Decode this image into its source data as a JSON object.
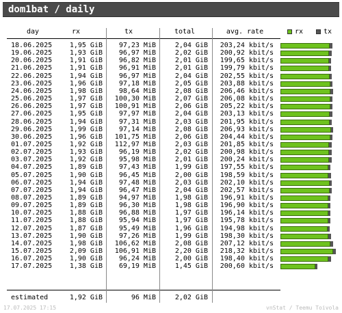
{
  "title": "dom1bat / daily",
  "headers": {
    "day": "day",
    "rx": "rx",
    "tx": "tx",
    "total": "total",
    "rate": "avg. rate"
  },
  "legend": {
    "rx": "rx",
    "tx": "tx",
    "rx_color": "#6ec21e",
    "tx_color": "#555555"
  },
  "rows": [
    {
      "day": "18.06.2025",
      "rx": "1,95 GiB",
      "tx": "97,23 MiB",
      "total": "2,04 GiB",
      "rate": "203,24 kbit/s",
      "rx_gib": 1.95,
      "tx_mib": 97.23
    },
    {
      "day": "19.06.2025",
      "rx": "1,93 GiB",
      "tx": "96,97 MiB",
      "total": "2,02 GiB",
      "rate": "200,92 kbit/s",
      "rx_gib": 1.93,
      "tx_mib": 96.97
    },
    {
      "day": "20.06.2025",
      "rx": "1,91 GiB",
      "tx": "96,82 MiB",
      "total": "2,01 GiB",
      "rate": "199,65 kbit/s",
      "rx_gib": 1.91,
      "tx_mib": 96.82
    },
    {
      "day": "21.06.2025",
      "rx": "1,91 GiB",
      "tx": "96,91 MiB",
      "total": "2,01 GiB",
      "rate": "199,79 kbit/s",
      "rx_gib": 1.91,
      "tx_mib": 96.91
    },
    {
      "day": "22.06.2025",
      "rx": "1,94 GiB",
      "tx": "96,97 MiB",
      "total": "2,04 GiB",
      "rate": "202,55 kbit/s",
      "rx_gib": 1.94,
      "tx_mib": 96.97
    },
    {
      "day": "23.06.2025",
      "rx": "1,96 GiB",
      "tx": "97,18 MiB",
      "total": "2,05 GiB",
      "rate": "203,88 kbit/s",
      "rx_gib": 1.96,
      "tx_mib": 97.18
    },
    {
      "day": "24.06.2025",
      "rx": "1,98 GiB",
      "tx": "98,64 MiB",
      "total": "2,08 GiB",
      "rate": "206,46 kbit/s",
      "rx_gib": 1.98,
      "tx_mib": 98.64
    },
    {
      "day": "25.06.2025",
      "rx": "1,97 GiB",
      "tx": "100,30 MiB",
      "total": "2,07 GiB",
      "rate": "206,08 kbit/s",
      "rx_gib": 1.97,
      "tx_mib": 100.3
    },
    {
      "day": "26.06.2025",
      "rx": "1,97 GiB",
      "tx": "100,91 MiB",
      "total": "2,06 GiB",
      "rate": "205,22 kbit/s",
      "rx_gib": 1.97,
      "tx_mib": 100.91
    },
    {
      "day": "27.06.2025",
      "rx": "1,95 GiB",
      "tx": "97,97 MiB",
      "total": "2,04 GiB",
      "rate": "203,13 kbit/s",
      "rx_gib": 1.95,
      "tx_mib": 97.97
    },
    {
      "day": "28.06.2025",
      "rx": "1,94 GiB",
      "tx": "97,31 MiB",
      "total": "2,03 GiB",
      "rate": "201,95 kbit/s",
      "rx_gib": 1.94,
      "tx_mib": 97.31
    },
    {
      "day": "29.06.2025",
      "rx": "1,99 GiB",
      "tx": "97,14 MiB",
      "total": "2,08 GiB",
      "rate": "206,93 kbit/s",
      "rx_gib": 1.99,
      "tx_mib": 97.14
    },
    {
      "day": "30.06.2025",
      "rx": "1,96 GiB",
      "tx": "101,75 MiB",
      "total": "2,06 GiB",
      "rate": "204,44 kbit/s",
      "rx_gib": 1.96,
      "tx_mib": 101.75
    },
    {
      "day": "01.07.2025",
      "rx": "1,92 GiB",
      "tx": "112,97 MiB",
      "total": "2,03 GiB",
      "rate": "201,85 kbit/s",
      "rx_gib": 1.92,
      "tx_mib": 112.97
    },
    {
      "day": "02.07.2025",
      "rx": "1,93 GiB",
      "tx": "96,19 MiB",
      "total": "2,02 GiB",
      "rate": "200,98 kbit/s",
      "rx_gib": 1.93,
      "tx_mib": 96.19
    },
    {
      "day": "03.07.2025",
      "rx": "1,92 GiB",
      "tx": "95,98 MiB",
      "total": "2,01 GiB",
      "rate": "200,24 kbit/s",
      "rx_gib": 1.92,
      "tx_mib": 95.98
    },
    {
      "day": "04.07.2025",
      "rx": "1,89 GiB",
      "tx": "97,43 MiB",
      "total": "1,99 GiB",
      "rate": "197,55 kbit/s",
      "rx_gib": 1.89,
      "tx_mib": 97.43
    },
    {
      "day": "05.07.2025",
      "rx": "1,90 GiB",
      "tx": "96,45 MiB",
      "total": "2,00 GiB",
      "rate": "198,59 kbit/s",
      "rx_gib": 1.9,
      "tx_mib": 96.45
    },
    {
      "day": "06.07.2025",
      "rx": "1,94 GiB",
      "tx": "97,48 MiB",
      "total": "2,03 GiB",
      "rate": "202,10 kbit/s",
      "rx_gib": 1.94,
      "tx_mib": 97.48
    },
    {
      "day": "07.07.2025",
      "rx": "1,94 GiB",
      "tx": "96,47 MiB",
      "total": "2,04 GiB",
      "rate": "202,57 kbit/s",
      "rx_gib": 1.94,
      "tx_mib": 96.47
    },
    {
      "day": "08.07.2025",
      "rx": "1,89 GiB",
      "tx": "94,97 MiB",
      "total": "1,98 GiB",
      "rate": "196,91 kbit/s",
      "rx_gib": 1.89,
      "tx_mib": 94.97
    },
    {
      "day": "09.07.2025",
      "rx": "1,89 GiB",
      "tx": "96,30 MiB",
      "total": "1,98 GiB",
      "rate": "196,90 kbit/s",
      "rx_gib": 1.89,
      "tx_mib": 96.3
    },
    {
      "day": "10.07.2025",
      "rx": "1,88 GiB",
      "tx": "96,88 MiB",
      "total": "1,97 GiB",
      "rate": "196,14 kbit/s",
      "rx_gib": 1.88,
      "tx_mib": 96.88
    },
    {
      "day": "11.07.2025",
      "rx": "1,88 GiB",
      "tx": "95,94 MiB",
      "total": "1,97 GiB",
      "rate": "195,78 kbit/s",
      "rx_gib": 1.88,
      "tx_mib": 95.94
    },
    {
      "day": "12.07.2025",
      "rx": "1,87 GiB",
      "tx": "95,49 MiB",
      "total": "1,96 GiB",
      "rate": "194,98 kbit/s",
      "rx_gib": 1.87,
      "tx_mib": 95.49
    },
    {
      "day": "13.07.2025",
      "rx": "1,90 GiB",
      "tx": "97,26 MiB",
      "total": "1,99 GiB",
      "rate": "198,30 kbit/s",
      "rx_gib": 1.9,
      "tx_mib": 97.26
    },
    {
      "day": "14.07.2025",
      "rx": "1,98 GiB",
      "tx": "106,62 MiB",
      "total": "2,08 GiB",
      "rate": "207,12 kbit/s",
      "rx_gib": 1.98,
      "tx_mib": 106.62
    },
    {
      "day": "15.07.2025",
      "rx": "2,09 GiB",
      "tx": "106,91 MiB",
      "total": "2,20 GiB",
      "rate": "218,32 kbit/s",
      "rx_gib": 2.09,
      "tx_mib": 106.91
    },
    {
      "day": "16.07.2025",
      "rx": "1,90 GiB",
      "tx": "96,24 MiB",
      "total": "2,00 GiB",
      "rate": "198,40 kbit/s",
      "rx_gib": 1.9,
      "tx_mib": 96.24
    },
    {
      "day": "17.07.2025",
      "rx": "1,38 GiB",
      "tx": "69,19 MiB",
      "total": "1,45 GiB",
      "rate": "200,60 kbit/s",
      "rx_gib": 1.38,
      "tx_mib": 69.19
    }
  ],
  "estimated": {
    "label": "estimated",
    "rx": "1,92 GiB",
    "tx": "96 MiB",
    "total": "2,02 GiB"
  },
  "footer": {
    "timestamp": "17.07.2025 17:15",
    "credit": "vnStat / Teemu Toivola"
  }
}
